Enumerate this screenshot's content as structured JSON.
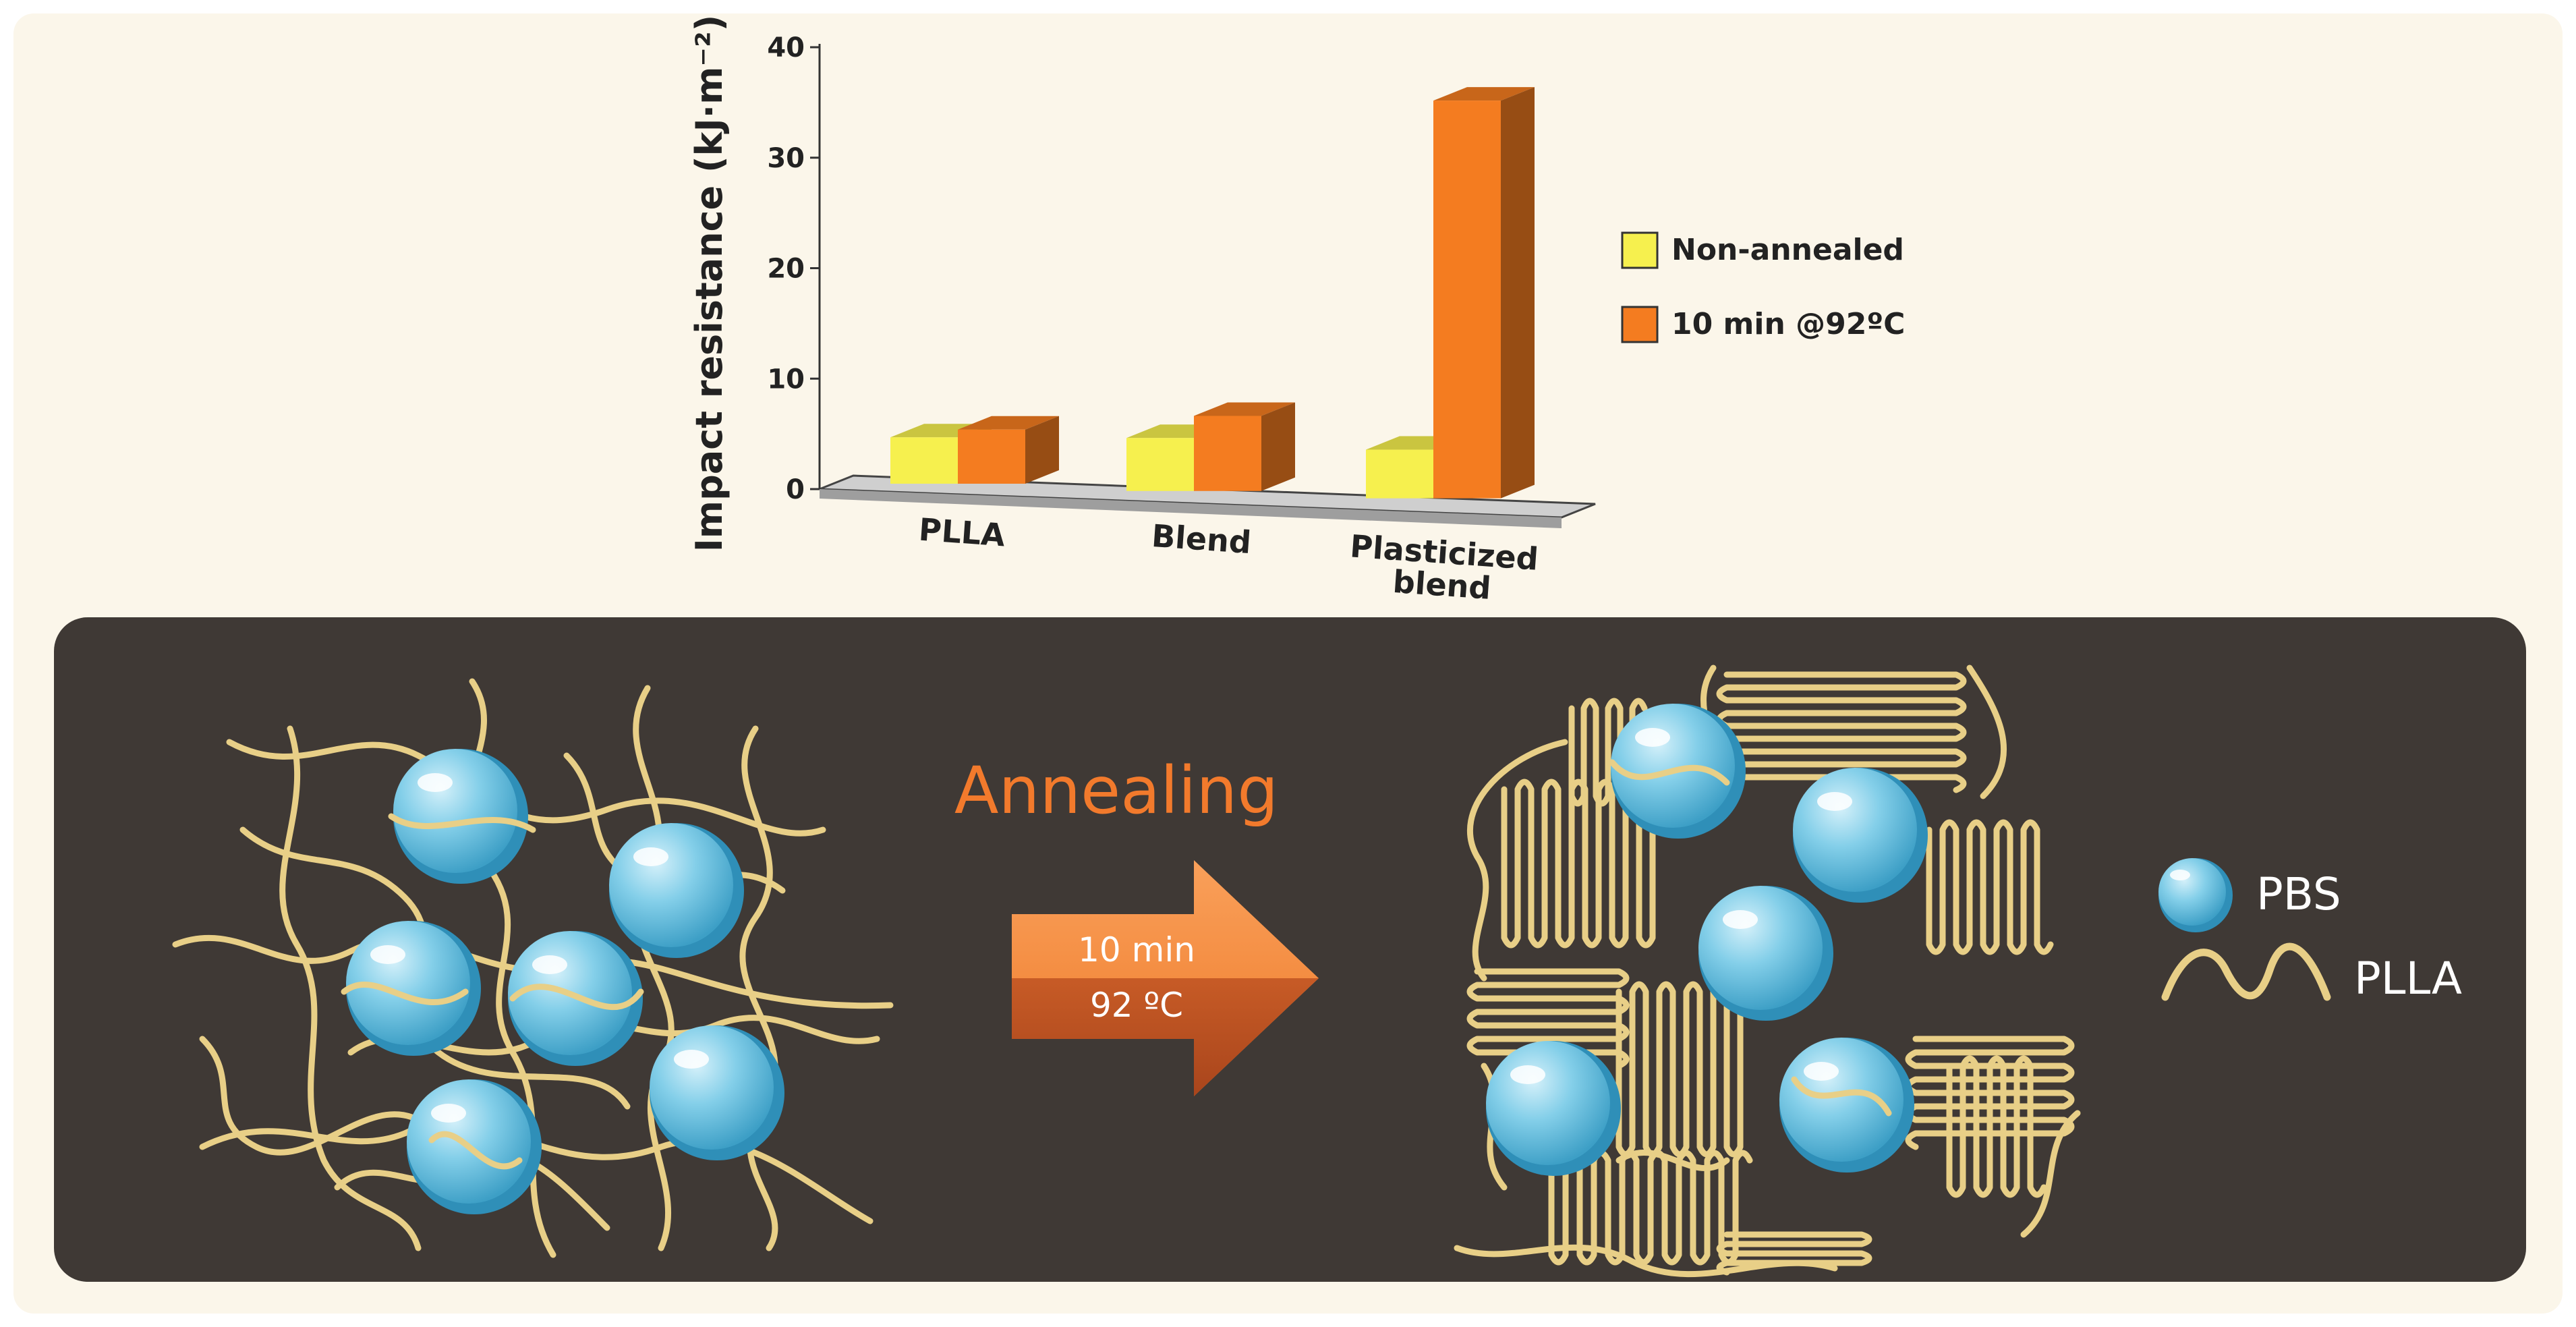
{
  "colors": {
    "page_background": "#fbf6ea",
    "panel_background": "#3f3935",
    "non_annealed": "#f6f04e",
    "annealed": "#f47c20",
    "chain": "#e8cf87",
    "sphere": "#6cc3e2",
    "annealing_text": "#f27a2c"
  },
  "chart_data": {
    "type": "bar",
    "style": "3d-clustered",
    "ylabel": "Impact resistance (kJ·m⁻²)",
    "ylim": [
      0,
      40
    ],
    "yticks": [
      "0",
      "10",
      "20",
      "30",
      "40"
    ],
    "categories": [
      "PLLA",
      "Blend",
      "Plasticized blend"
    ],
    "category_lines": [
      [
        "PLLA"
      ],
      [
        "Blend"
      ],
      [
        "Plasticized",
        "blend"
      ]
    ],
    "series": [
      {
        "name": "Non-annealed",
        "color": "#f6f04e",
        "values": [
          4.2,
          4.8,
          4.4
        ]
      },
      {
        "name": "10 min @92ºC",
        "color": "#f47c20",
        "values": [
          4.9,
          6.8,
          36.0
        ]
      }
    ],
    "legend_position": "right",
    "grid": false
  },
  "scheme": {
    "process_label": "Annealing",
    "arrow_time": "10 min",
    "arrow_temperature": "92 ºC"
  },
  "legend": {
    "sphere_label": "PBS",
    "chain_label": "PLLA",
    "sphere_icon": "sphere-icon",
    "chain_icon": "wave-icon"
  }
}
